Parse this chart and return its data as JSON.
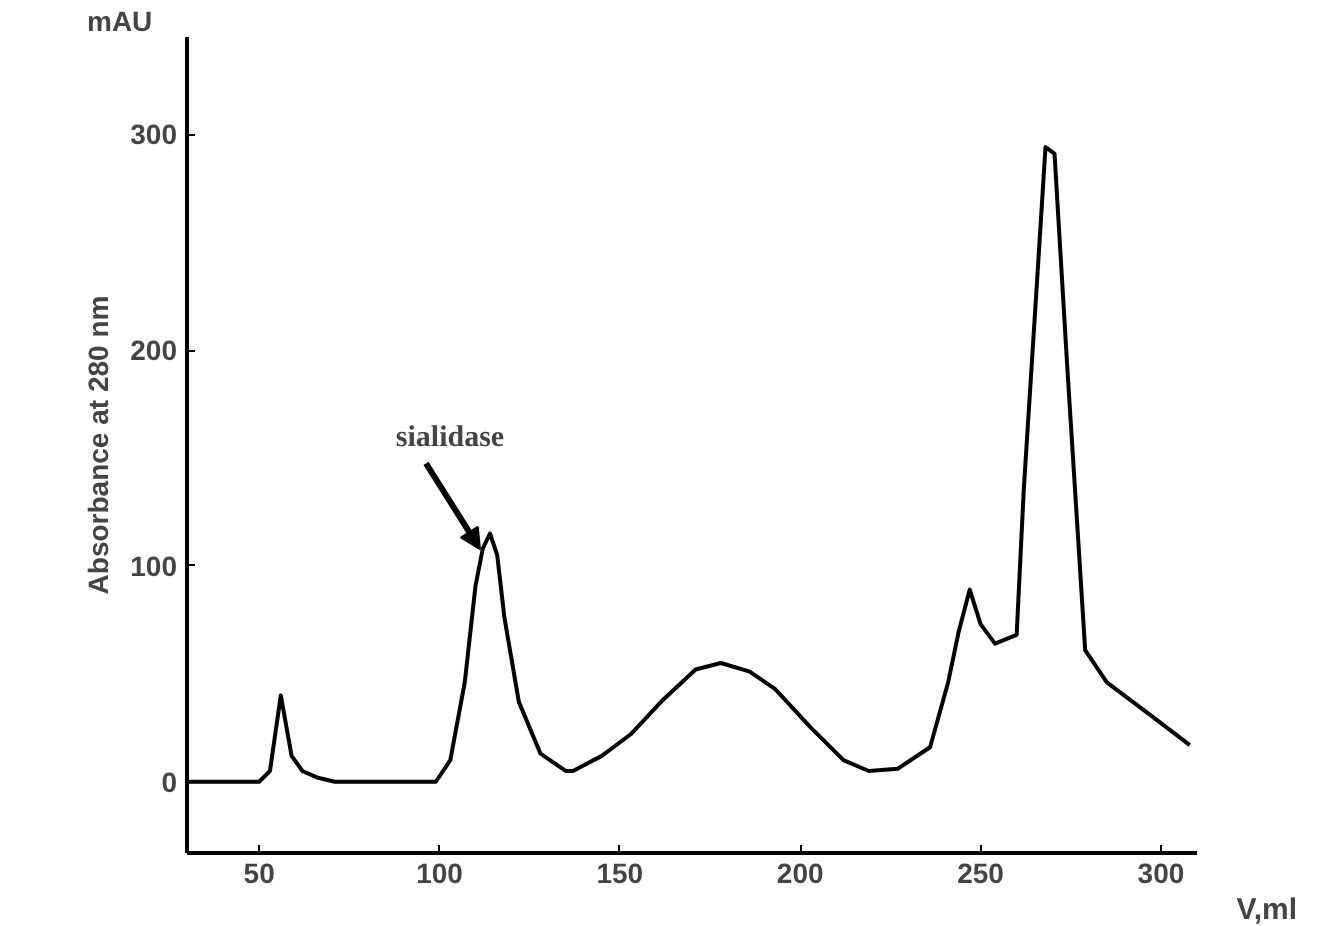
{
  "chart_data": {
    "type": "line",
    "xlabel": "V,ml",
    "ylabel": "Absorbance at 280 nm",
    "annotations": [
      "mAU",
      {
        "text": "sialidase",
        "x": 114,
        "y": 115
      }
    ],
    "x": [
      30,
      50,
      53,
      56,
      59,
      62,
      66,
      71,
      85,
      99,
      103,
      107,
      110,
      112,
      114,
      116,
      118,
      122,
      128,
      135,
      137,
      145,
      153,
      162,
      171,
      178,
      186,
      193,
      203,
      212,
      219,
      227,
      236,
      241,
      244,
      247,
      250,
      254,
      260,
      262,
      266,
      268,
      270.5,
      274,
      279,
      285,
      297,
      308
    ],
    "series": [
      {
        "color": "#000000",
        "values": [
          0,
          0,
          5,
          40,
          12,
          5,
          2,
          0,
          0,
          0,
          10,
          46,
          91,
          108,
          115,
          105,
          76,
          37,
          13,
          5,
          5,
          12,
          22,
          38,
          52,
          55,
          51,
          43,
          25,
          10,
          5,
          6,
          16,
          46,
          70,
          89,
          73,
          64,
          68,
          136,
          241,
          294,
          291,
          193,
          61,
          46,
          31,
          17
        ]
      }
    ],
    "xlim": [
      30,
      310
    ],
    "ylim": [
      -33,
      345
    ],
    "xticks": [
      50,
      100,
      150,
      200,
      250,
      300
    ],
    "yticks": [
      0,
      100,
      200,
      300
    ],
    "grid": false,
    "marker": "none",
    "line_style": "solid"
  }
}
